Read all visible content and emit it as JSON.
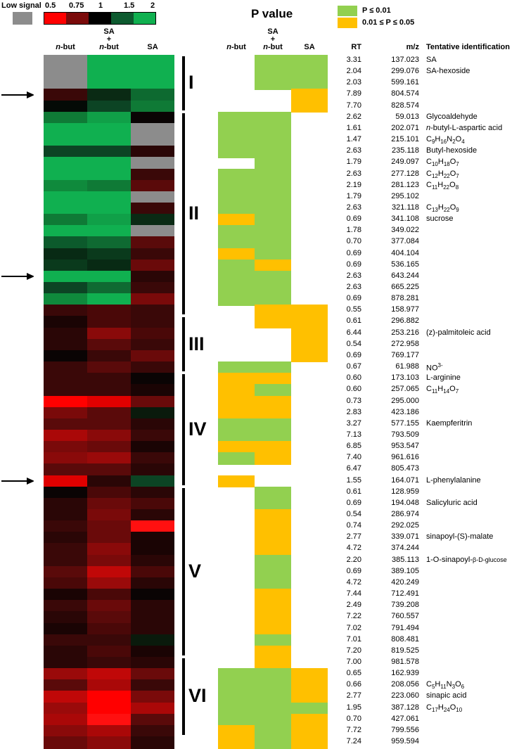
{
  "legend": {
    "low_signal_label": "Low signal",
    "low_signal_color": "#8c8c8c",
    "scale_ticks": [
      "0.5",
      "0.75",
      "1",
      "1.5",
      "2"
    ],
    "scale_colors": [
      "#ff0000",
      "#7a0a0a",
      "#000000",
      "#0d5a2f",
      "#10b050"
    ],
    "p_value_title": "P value",
    "p_legend": [
      {
        "label": "P ≤ 0.01",
        "color": "#92d050"
      },
      {
        "label": "0.01 ≤ P ≤ 0.05",
        "color": "#ffc000"
      }
    ]
  },
  "columns": {
    "heatmap": [
      "n-but",
      "SA + n-but",
      "SA"
    ],
    "heatmap_display": [
      [
        "n",
        "-but"
      ],
      [
        "SA",
        "+",
        "n",
        "-but"
      ],
      [
        "SA"
      ]
    ],
    "pvalue": [
      "n-but",
      "SA + n-but",
      "SA"
    ],
    "rt": "RT",
    "mz": "m/z",
    "id": "Tentative identification"
  },
  "groups": [
    {
      "label": "I",
      "start": 0,
      "end": 4
    },
    {
      "label": "II",
      "start": 5,
      "end": 22
    },
    {
      "label": "III",
      "start": 23,
      "end": 27
    },
    {
      "label": "IV",
      "start": 28,
      "end": 37
    },
    {
      "label": "V",
      "start": 38,
      "end": 52
    },
    {
      "label": "VI",
      "start": 53,
      "end": 59
    }
  ],
  "arrows": [
    3,
    19,
    37
  ],
  "rows": [
    {
      "rt": "3.31",
      "mz": "137.023",
      "id": "SA",
      "h": [
        "#8c8c8c",
        "#10b050",
        "#10b050"
      ],
      "p": [
        null,
        "g",
        "g"
      ]
    },
    {
      "rt": "2.04",
      "mz": "299.076",
      "id": "SA-hexoside",
      "h": [
        "#8c8c8c",
        "#10b050",
        "#10b050"
      ],
      "p": [
        null,
        "g",
        "g"
      ]
    },
    {
      "rt": "2.03",
      "mz": "599.161",
      "id": "",
      "h": [
        "#8c8c8c",
        "#10b050",
        "#10b050"
      ],
      "p": [
        null,
        "g",
        "g"
      ]
    },
    {
      "rt": "7.89",
      "mz": "804.574",
      "id": "",
      "h": [
        "#3a0808",
        "#0a2a14",
        "#0d6a30"
      ],
      "p": [
        null,
        null,
        "y"
      ]
    },
    {
      "rt": "7.70",
      "mz": "828.574",
      "id": "",
      "h": [
        "#040a06",
        "#0c4424",
        "#0f7a36"
      ],
      "p": [
        null,
        null,
        "y"
      ]
    },
    {
      "rt": "2.62",
      "mz": "59.013",
      "id": "Glycoaldehyde",
      "h": [
        "#0f7a36",
        "#10a048",
        "#0a0404"
      ],
      "p": [
        "g",
        "g",
        null
      ]
    },
    {
      "rt": "1.61",
      "mz": "202.071",
      "id": "n-butyl-L-aspartic acid",
      "idh": "<i>n</i>-butyl-L-aspartic acid",
      "h": [
        "#10b050",
        "#10b050",
        "#8c8c8c"
      ],
      "p": [
        "g",
        "g",
        null
      ]
    },
    {
      "rt": "1.47",
      "mz": "215.101",
      "id": "C9H16N2O4",
      "idh": "C<sub>9</sub>H<sub>16</sub>N<sub>2</sub>O<sub>4</sub>",
      "h": [
        "#10b050",
        "#10b050",
        "#8c8c8c"
      ],
      "p": [
        "g",
        "g",
        null
      ]
    },
    {
      "rt": "2.63",
      "mz": "235.118",
      "id": "Butyl-hexoside",
      "h": [
        "#0c4424",
        "#0c4424",
        "#2a0606"
      ],
      "p": [
        "g",
        "g",
        null
      ]
    },
    {
      "rt": "1.79",
      "mz": "249.097",
      "id": "C10H18O7",
      "idh": "C<sub>10</sub>H<sub>18</sub>O<sub>7</sub>",
      "h": [
        "#10b050",
        "#10b050",
        "#8c8c8c"
      ],
      "p": [
        null,
        "g",
        null
      ]
    },
    {
      "rt": "2.63",
      "mz": "277.128",
      "id": "C12H22O7",
      "idh": "C<sub>12</sub>H<sub>22</sub>O<sub>7</sub>",
      "h": [
        "#10b050",
        "#10b050",
        "#3a0808"
      ],
      "p": [
        "g",
        "g",
        null
      ]
    },
    {
      "rt": "2.19",
      "mz": "281.123",
      "id": "C11H22O8",
      "idh": "C<sub>11</sub>H<sub>22</sub>O<sub>8</sub>",
      "h": [
        "#0f8a3c",
        "#0f7a36",
        "#5a0a0a"
      ],
      "p": [
        "g",
        "g",
        null
      ]
    },
    {
      "rt": "1.79",
      "mz": "295.102",
      "id": "",
      "h": [
        "#10b050",
        "#10b050",
        "#8c8c8c"
      ],
      "p": [
        "g",
        "g",
        null
      ]
    },
    {
      "rt": "2.63",
      "mz": "321.118",
      "id": "C13H22O9",
      "idh": "C<sub>13</sub>H<sub>22</sub>O<sub>9</sub>",
      "h": [
        "#10b050",
        "#10b050",
        "#3a0808"
      ],
      "p": [
        "g",
        "g",
        null
      ]
    },
    {
      "rt": "0.69",
      "mz": "341.108",
      "id": "sucrose",
      "h": [
        "#0f7a36",
        "#10a048",
        "#0a2a14"
      ],
      "p": [
        "y",
        "g",
        null
      ]
    },
    {
      "rt": "1.78",
      "mz": "349.022",
      "id": "",
      "h": [
        "#10b050",
        "#10b050",
        "#8c8c8c"
      ],
      "p": [
        "g",
        "g",
        null
      ]
    },
    {
      "rt": "0.70",
      "mz": "377.084",
      "id": "",
      "h": [
        "#0c5a2c",
        "#0f6a32",
        "#5a0a0a"
      ],
      "p": [
        "g",
        "g",
        null
      ]
    },
    {
      "rt": "0.69",
      "mz": "404.104",
      "id": "",
      "h": [
        "#082a14",
        "#0a3a1c",
        "#3a0808"
      ],
      "p": [
        "y",
        "g",
        null
      ]
    },
    {
      "rt": "0.69",
      "mz": "536.165",
      "id": "",
      "h": [
        "#0a3a1c",
        "#082a14",
        "#6a0a0a"
      ],
      "p": [
        "g",
        "y",
        null
      ]
    },
    {
      "rt": "2.63",
      "mz": "643.244",
      "id": "",
      "h": [
        "#10b050",
        "#10b050",
        "#2a0606"
      ],
      "p": [
        "g",
        "g",
        null
      ]
    },
    {
      "rt": "2.63",
      "mz": "665.225",
      "id": "",
      "h": [
        "#0c4424",
        "#0f6a32",
        "#3a0808"
      ],
      "p": [
        "g",
        "g",
        null
      ]
    },
    {
      "rt": "0.69",
      "mz": "878.281",
      "id": "",
      "h": [
        "#0f8a3c",
        "#10b050",
        "#7a0a0a"
      ],
      "p": [
        "g",
        "g",
        null
      ]
    },
    {
      "rt": "0.55",
      "mz": "158.977",
      "id": "",
      "h": [
        "#3a0808",
        "#4a0808",
        "#3a0808"
      ],
      "p": [
        null,
        "y",
        "y"
      ]
    },
    {
      "rt": "0.61",
      "mz": "296.882",
      "id": "",
      "h": [
        "#1a0404",
        "#4a0808",
        "#3a0808"
      ],
      "p": [
        null,
        "y",
        "y"
      ]
    },
    {
      "rt": "6.44",
      "mz": "253.216",
      "id": "(z)-palmitoleic acid",
      "h": [
        "#2a0606",
        "#8a0a0a",
        "#4a0808"
      ],
      "p": [
        null,
        null,
        "y"
      ]
    },
    {
      "rt": "0.54",
      "mz": "272.958",
      "id": "",
      "h": [
        "#2a0606",
        "#5a0a0a",
        "#3a0808"
      ],
      "p": [
        null,
        null,
        "y"
      ]
    },
    {
      "rt": "0.69",
      "mz": "769.177",
      "id": "",
      "h": [
        "#0a0404",
        "#3a0808",
        "#6a0a0a"
      ],
      "p": [
        null,
        null,
        "y"
      ]
    },
    {
      "rt": "0.67",
      "mz": "61.988",
      "id": "NO3-",
      "idh": "NO<sup>3-</sup>",
      "h": [
        "#3a0808",
        "#5a0a0a",
        "#3a0808"
      ],
      "p": [
        "g",
        "g",
        null
      ]
    },
    {
      "rt": "0.60",
      "mz": "173.103",
      "id": "L-arginine",
      "h": [
        "#3a0808",
        "#3a0808",
        "#0a0404"
      ],
      "p": [
        "y",
        "y",
        null
      ]
    },
    {
      "rt": "0.60",
      "mz": "257.065",
      "id": "C11H14O7",
      "idh": "C<sub>11</sub>H<sub>14</sub>O<sub>7</sub>",
      "h": [
        "#3a0808",
        "#3a0808",
        "#1a0404"
      ],
      "p": [
        "y",
        "g",
        null
      ]
    },
    {
      "rt": "0.73",
      "mz": "295.000",
      "id": "",
      "h": [
        "#ff0000",
        "#e00000",
        "#6a0a0a"
      ],
      "p": [
        "y",
        "y",
        null
      ]
    },
    {
      "rt": "2.83",
      "mz": "423.186",
      "id": "",
      "h": [
        "#7a0a0a",
        "#5a0a0a",
        "#0a1a0c"
      ],
      "p": [
        "y",
        "y",
        null
      ]
    },
    {
      "rt": "3.27",
      "mz": "577.155",
      "id": "Kaempferitrin",
      "h": [
        "#5a0a0a",
        "#5a0a0a",
        "#2a0606"
      ],
      "p": [
        "g",
        "g",
        null
      ]
    },
    {
      "rt": "7.13",
      "mz": "793.509",
      "id": "",
      "h": [
        "#aa0808",
        "#8a0a0a",
        "#3a0808"
      ],
      "p": [
        "g",
        "g",
        null
      ]
    },
    {
      "rt": "6.85",
      "mz": "953.547",
      "id": "",
      "h": [
        "#7a0a0a",
        "#6a0a0a",
        "#1a0404"
      ],
      "p": [
        "y",
        "y",
        null
      ]
    },
    {
      "rt": "7.40",
      "mz": "961.616",
      "id": "",
      "h": [
        "#8a0a0a",
        "#9a0a0a",
        "#3a0808"
      ],
      "p": [
        "g",
        "y",
        null
      ]
    },
    {
      "rt": "6.47",
      "mz": "805.473",
      "id": "",
      "h": [
        "#5a0a0a",
        "#5a0a0a",
        "#2a0606"
      ],
      "p": [
        null,
        null,
        null
      ]
    },
    {
      "rt": "1.55",
      "mz": "164.071",
      "id": "L-phenylalanine",
      "h": [
        "#e00000",
        "#2a0606",
        "#0c4424"
      ],
      "p": [
        "y",
        null,
        null
      ]
    },
    {
      "rt": "0.61",
      "mz": "128.959",
      "id": "",
      "h": [
        "#0a0404",
        "#4a0808",
        "#2a0606"
      ],
      "p": [
        null,
        "g",
        null
      ]
    },
    {
      "rt": "0.69",
      "mz": "194.048",
      "id": "Salicyluric acid",
      "h": [
        "#2a0606",
        "#6a0a0a",
        "#4a0808"
      ],
      "p": [
        null,
        "g",
        null
      ]
    },
    {
      "rt": "0.54",
      "mz": "286.974",
      "id": "",
      "h": [
        "#2a0606",
        "#7a0a0a",
        "#2a0606"
      ],
      "p": [
        null,
        "y",
        null
      ]
    },
    {
      "rt": "0.74",
      "mz": "292.025",
      "id": "",
      "h": [
        "#3a0808",
        "#6a0a0a",
        "#ff1010"
      ],
      "p": [
        null,
        "y",
        null
      ]
    },
    {
      "rt": "2.77",
      "mz": "339.071",
      "id": "sinapoyl-(S)-malate",
      "h": [
        "#2a0606",
        "#6a0a0a",
        "#1a0404"
      ],
      "p": [
        null,
        "y",
        null
      ]
    },
    {
      "rt": "4.72",
      "mz": "374.244",
      "id": "",
      "h": [
        "#3a0808",
        "#8a0a0a",
        "#1a0404"
      ],
      "p": [
        null,
        "y",
        null
      ]
    },
    {
      "rt": "2.20",
      "mz": "385.113",
      "id": "1-O-sinapoyl-β-D-glucose",
      "idh": "1-O-sinapoyl-<span style=\"font-size:9px\">β-D-glucose</span>",
      "h": [
        "#3a0808",
        "#7a0a0a",
        "#2a0606"
      ],
      "p": [
        null,
        "g",
        null
      ]
    },
    {
      "rt": "0.69",
      "mz": "389.105",
      "id": "",
      "h": [
        "#5a0a0a",
        "#c00808",
        "#4a0808"
      ],
      "p": [
        null,
        "g",
        null
      ]
    },
    {
      "rt": "4.72",
      "mz": "420.249",
      "id": "",
      "h": [
        "#4a0808",
        "#9a0a0a",
        "#2a0606"
      ],
      "p": [
        null,
        "g",
        null
      ]
    },
    {
      "rt": "7.44",
      "mz": "712.491",
      "id": "",
      "h": [
        "#1a0404",
        "#4a0808",
        "#0a0404"
      ],
      "p": [
        null,
        "y",
        null
      ]
    },
    {
      "rt": "2.49",
      "mz": "739.208",
      "id": "",
      "h": [
        "#3a0808",
        "#6a0a0a",
        "#2a0606"
      ],
      "p": [
        null,
        "y",
        null
      ]
    },
    {
      "rt": "7.22",
      "mz": "760.557",
      "id": "",
      "h": [
        "#2a0606",
        "#5a0a0a",
        "#2a0606"
      ],
      "p": [
        null,
        "y",
        null
      ]
    },
    {
      "rt": "7.02",
      "mz": "791.494",
      "id": "",
      "h": [
        "#1a0404",
        "#4a0808",
        "#2a0606"
      ],
      "p": [
        null,
        "y",
        null
      ]
    },
    {
      "rt": "7.01",
      "mz": "808.481",
      "id": "",
      "h": [
        "#3a0808",
        "#3a0808",
        "#0a1a0c"
      ],
      "p": [
        null,
        "g",
        null
      ]
    },
    {
      "rt": "7.20",
      "mz": "819.525",
      "id": "",
      "h": [
        "#2a0606",
        "#4a0808",
        "#1a0404"
      ],
      "p": [
        null,
        "y",
        null
      ]
    },
    {
      "rt": "7.00",
      "mz": "981.578",
      "id": "",
      "h": [
        "#2a0606",
        "#3a0808",
        "#2a0606"
      ],
      "p": [
        null,
        "y",
        null
      ]
    },
    {
      "rt": "0.65",
      "mz": "162.939",
      "id": "",
      "h": [
        "#9a0a0a",
        "#c00808",
        "#6a0a0a"
      ],
      "p": [
        "g",
        "g",
        "y"
      ]
    },
    {
      "rt": "0.66",
      "mz": "208.056",
      "id": "C5H11N3O6",
      "idh": "C<sub>5</sub>H<sub>11</sub>N<sub>3</sub>O<sub>6</sub>",
      "h": [
        "#5a0a0a",
        "#aa0808",
        "#3a0808"
      ],
      "p": [
        "g",
        "g",
        "y"
      ]
    },
    {
      "rt": "2.77",
      "mz": "223.060",
      "id": "sinapic acid",
      "h": [
        "#c00808",
        "#ff0000",
        "#7a0a0a"
      ],
      "p": [
        "g",
        "g",
        "y"
      ]
    },
    {
      "rt": "1.95",
      "mz": "387.128",
      "id": "C17H24O10",
      "idh": "C<sub>17</sub>H<sub>24</sub>O<sub>10</sub>",
      "h": [
        "#9a0a0a",
        "#ff0000",
        "#aa0808"
      ],
      "p": [
        "g",
        "g",
        "g"
      ]
    },
    {
      "rt": "0.70",
      "mz": "427.061",
      "id": "",
      "h": [
        "#aa0808",
        "#ff1010",
        "#5a0a0a"
      ],
      "p": [
        "g",
        "g",
        "y"
      ]
    },
    {
      "rt": "7.72",
      "mz": "799.556",
      "id": "",
      "h": [
        "#8a0a0a",
        "#aa0808",
        "#3a0808"
      ],
      "p": [
        "y",
        "g",
        "y"
      ]
    },
    {
      "rt": "7.24",
      "mz": "959.594",
      "id": "",
      "h": [
        "#6a0a0a",
        "#8a0a0a",
        "#2a0606"
      ],
      "p": [
        "y",
        "g",
        "y"
      ]
    }
  ]
}
